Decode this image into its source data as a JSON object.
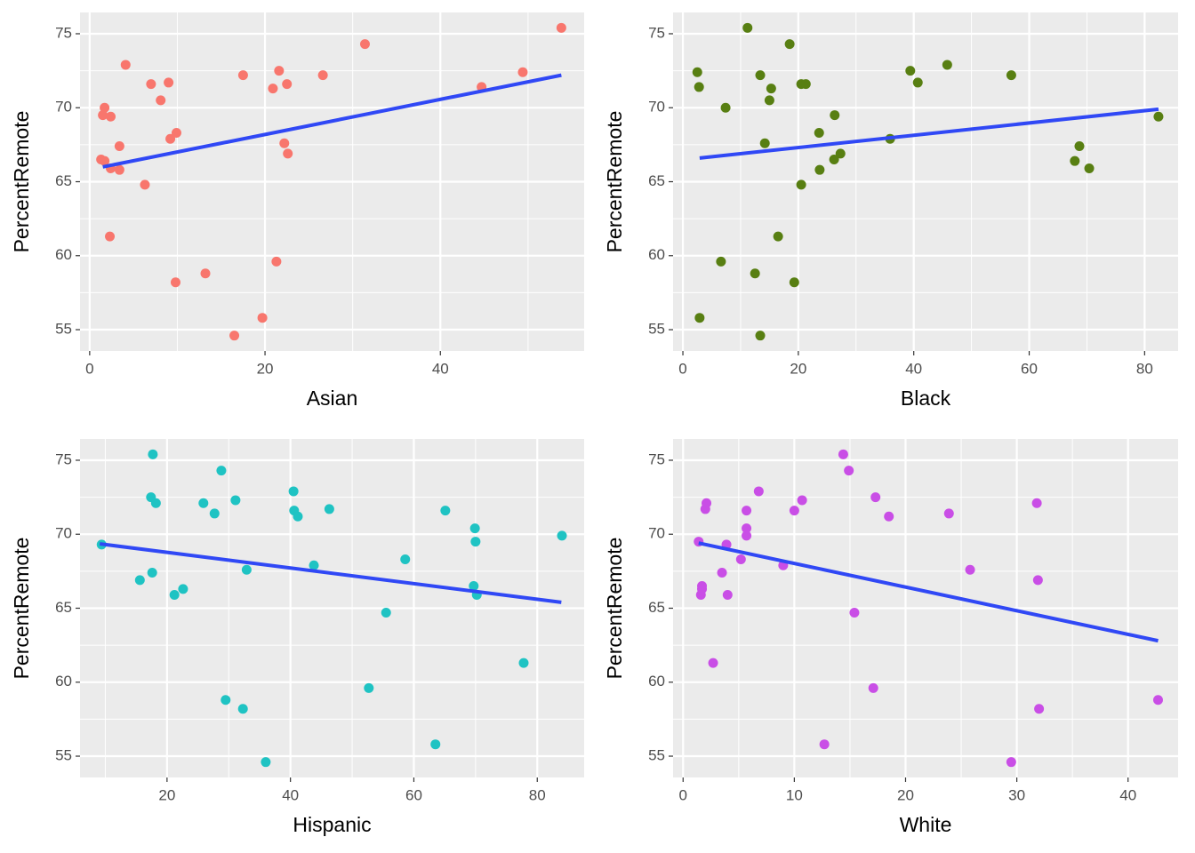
{
  "chart_data": [
    {
      "type": "scatter",
      "x_label": "Asian",
      "y_label": "PercentRemote",
      "color": "#f8766d",
      "grid": true,
      "x": [
        53.8,
        31.4,
        4.1,
        21.6,
        49.4,
        17.5,
        26.6,
        7.0,
        9.0,
        22.5,
        20.9,
        44.7,
        1.7,
        8.1,
        1.5,
        2.4,
        9.9,
        9.2,
        3.4,
        22.2,
        22.6,
        1.3,
        1.7,
        2.4,
        3.4,
        6.3,
        2.3,
        21.3,
        13.2,
        9.8,
        19.7,
        16.5
      ],
      "values": [
        75.4,
        74.3,
        72.9,
        72.5,
        72.4,
        72.2,
        72.2,
        71.6,
        71.7,
        71.6,
        71.3,
        71.4,
        70.0,
        70.5,
        69.5,
        69.4,
        68.3,
        67.9,
        67.4,
        67.6,
        66.9,
        66.5,
        66.4,
        65.9,
        65.8,
        64.8,
        61.3,
        59.6,
        58.8,
        58.2,
        55.8,
        54.6
      ],
      "trendline": {
        "color": "#3048f5",
        "x": [
          1.5,
          53.8
        ],
        "y": [
          66.0,
          72.2
        ]
      },
      "xlim": [
        -1.1,
        56.4
      ],
      "ylim": [
        53.56,
        76.44
      ],
      "xticks": [
        0,
        20,
        40
      ],
      "yticks": [
        55,
        60,
        65,
        70,
        75
      ]
    },
    {
      "type": "scatter",
      "x_label": "Black",
      "y_label": "PercentRemote",
      "color": "#587f12",
      "grid": true,
      "x": [
        11.2,
        18.5,
        2.5,
        13.4,
        39.4,
        45.8,
        56.9,
        2.8,
        15.3,
        20.5,
        21.3,
        40.7,
        15.0,
        7.4,
        26.3,
        82.4,
        23.6,
        35.9,
        14.2,
        68.7,
        67.9,
        27.3,
        26.2,
        23.7,
        70.4,
        20.5,
        16.5,
        6.6,
        12.5,
        19.3,
        2.9,
        13.4
      ],
      "values": [
        75.4,
        74.3,
        72.4,
        72.2,
        72.5,
        72.9,
        72.2,
        71.4,
        71.3,
        71.6,
        71.6,
        71.7,
        70.5,
        70.0,
        69.5,
        69.4,
        68.3,
        67.9,
        67.6,
        67.4,
        66.4,
        66.9,
        66.5,
        65.8,
        65.9,
        64.8,
        61.3,
        59.6,
        58.8,
        58.2,
        55.8,
        54.6
      ],
      "trendline": {
        "color": "#3048f5",
        "x": [
          2.9,
          82.4
        ],
        "y": [
          66.6,
          69.9
        ]
      },
      "xlim": [
        -1.7,
        85.8
      ],
      "ylim": [
        53.56,
        76.44
      ],
      "xticks": [
        0,
        20,
        40,
        60,
        80
      ],
      "yticks": [
        55,
        60,
        65,
        70,
        75
      ]
    },
    {
      "type": "scatter",
      "x_label": "Hispanic",
      "y_label": "PercentRemote",
      "color": "#1fc3c3",
      "grid": true,
      "x": [
        17.7,
        28.8,
        17.4,
        18.2,
        25.9,
        31.1,
        40.5,
        27.7,
        40.6,
        41.2,
        46.3,
        65.1,
        69.9,
        84.0,
        9.4,
        70.0,
        58.6,
        43.8,
        32.9,
        17.6,
        15.6,
        69.7,
        22.6,
        21.2,
        70.2,
        55.5,
        77.8,
        52.7,
        29.5,
        32.3,
        63.5,
        36.0
      ],
      "values": [
        75.4,
        74.3,
        72.5,
        72.1,
        72.1,
        72.3,
        72.9,
        71.4,
        71.6,
        71.2,
        71.7,
        71.6,
        70.4,
        69.9,
        69.3,
        69.5,
        68.3,
        67.9,
        67.6,
        67.4,
        66.9,
        66.5,
        66.3,
        65.9,
        65.9,
        64.7,
        61.3,
        59.6,
        58.8,
        58.2,
        55.8,
        54.6
      ],
      "trendline": {
        "color": "#3048f5",
        "x": [
          9.1,
          83.9
        ],
        "y": [
          69.35,
          65.4
        ]
      },
      "xlim": [
        5.9,
        87.6
      ],
      "ylim": [
        53.56,
        76.44
      ],
      "xticks": [
        20,
        40,
        60,
        80
      ],
      "yticks": [
        55,
        60,
        65,
        70,
        75
      ]
    },
    {
      "type": "scatter",
      "x_label": "White",
      "y_label": "PercentRemote",
      "color": "#c94ee6",
      "grid": true,
      "x": [
        14.4,
        14.9,
        6.8,
        2.1,
        2.0,
        17.3,
        10.7,
        31.8,
        5.7,
        10.0,
        18.5,
        23.9,
        5.7,
        5.7,
        1.4,
        3.9,
        5.2,
        9.0,
        25.8,
        3.5,
        31.9,
        1.7,
        1.7,
        4.0,
        1.6,
        15.4,
        2.7,
        17.1,
        42.7,
        32.0,
        12.7,
        29.5
      ],
      "values": [
        75.4,
        74.3,
        72.9,
        72.1,
        71.7,
        72.5,
        72.3,
        72.1,
        71.6,
        71.6,
        71.2,
        71.4,
        70.4,
        69.9,
        69.5,
        69.3,
        68.3,
        67.9,
        67.6,
        67.4,
        66.9,
        66.5,
        66.3,
        65.9,
        65.9,
        64.7,
        61.3,
        59.6,
        58.8,
        58.2,
        55.8,
        54.6
      ],
      "trendline": {
        "color": "#3048f5",
        "x": [
          1.4,
          42.7
        ],
        "y": [
          69.4,
          62.8
        ]
      },
      "xlim": [
        -0.9,
        44.5
      ],
      "ylim": [
        53.56,
        76.44
      ],
      "xticks": [
        0,
        10,
        20,
        30,
        40
      ],
      "yticks": [
        55,
        60,
        65,
        70,
        75
      ]
    }
  ]
}
